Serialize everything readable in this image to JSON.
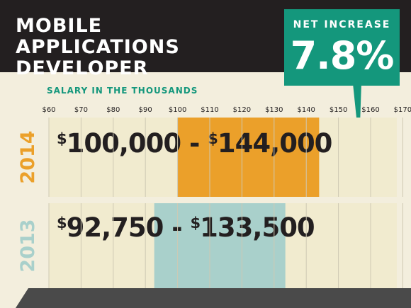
{
  "title": {
    "line1": "MOBILE APPLICATIONS",
    "line2": "DEVELOPER"
  },
  "callout": {
    "label": "NET INCREASE",
    "value": "7.8%"
  },
  "colors": {
    "background": "#f3eedd",
    "header": "#231f20",
    "accent_green": "#14977c",
    "bar_2014": "#eba02a",
    "bar_2013": "#a9d0cb",
    "year_2014": "#eba02a",
    "year_2013": "#a9d0cb",
    "gridline": "#cfc9b3"
  },
  "chart_data": {
    "type": "bar",
    "orientation": "horizontal-range",
    "subtitle": "SALARY IN THE THOUSANDS",
    "x_ticks": [
      "$60",
      "$70",
      "$80",
      "$90",
      "$100",
      "$110",
      "$120",
      "$130",
      "$140",
      "$150",
      "$160",
      "$170"
    ],
    "xlim": [
      60,
      170
    ],
    "series": [
      {
        "name": "2014",
        "low": 100,
        "high": 144,
        "label_low": "100,000",
        "label_high": "144,000"
      },
      {
        "name": "2013",
        "low": 92.75,
        "high": 133.5,
        "label_low": "92,750",
        "label_high": "133,500"
      }
    ],
    "grid": true
  }
}
